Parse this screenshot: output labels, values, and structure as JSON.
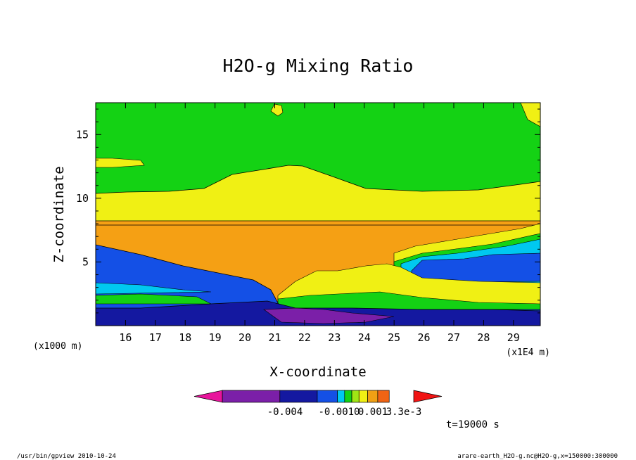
{
  "chart_data": {
    "type": "heatmap",
    "title": "H2O-g Mixing Ratio",
    "xlabel": "X-coordinate",
    "ylabel": "Z-coordinate",
    "x_unit_label": "(x1E4 m)",
    "y_unit_label": "(x1000 m)",
    "x_ticks": [
      "16",
      "17",
      "18",
      "19",
      "20",
      "21",
      "22",
      "23",
      "24",
      "25",
      "26",
      "27",
      "28",
      "29"
    ],
    "y_ticks": [
      "5",
      "10",
      "15"
    ],
    "xlim": [
      15,
      29.9
    ],
    "ylim": [
      0,
      17.5
    ],
    "time_label": "t=19000 s",
    "colorbar": {
      "labels": [
        "-0.004",
        "-0.0010",
        "0.001",
        "3.3e-3"
      ],
      "colors": [
        "#e8149c",
        "#7b1fa8",
        "#1418a0",
        "#1450e6",
        "#00c8f0",
        "#14d214",
        "#a0e614",
        "#f0f014",
        "#f0a014",
        "#f06414",
        "#f01414"
      ]
    },
    "layers_top_to_bottom": [
      {
        "band": "upper",
        "color": "green",
        "z_range": [
          10.5,
          17.5
        ]
      },
      {
        "band": "middle",
        "color": "yellow",
        "z_range": [
          8.3,
          10.5
        ]
      },
      {
        "band": "lower-middle",
        "color": "orange",
        "z_range": [
          4,
          8.3
        ]
      },
      {
        "band": "lower",
        "color": "blue",
        "z_range": [
          0,
          4
        ]
      }
    ]
  },
  "footer": {
    "left": "/usr/bin/gpview   2010-10-24",
    "right": "arare-earth_H2O-g.nc@H2O-g,x=150000:300000"
  },
  "colors": {
    "green": "#14d214",
    "yellow": "#f0f014",
    "orange": "#f5a014",
    "blue": "#1450e6",
    "darkblue": "#1418a0",
    "purple": "#7b1fa8",
    "cyan": "#00c8f0",
    "lime": "#a0e614"
  }
}
